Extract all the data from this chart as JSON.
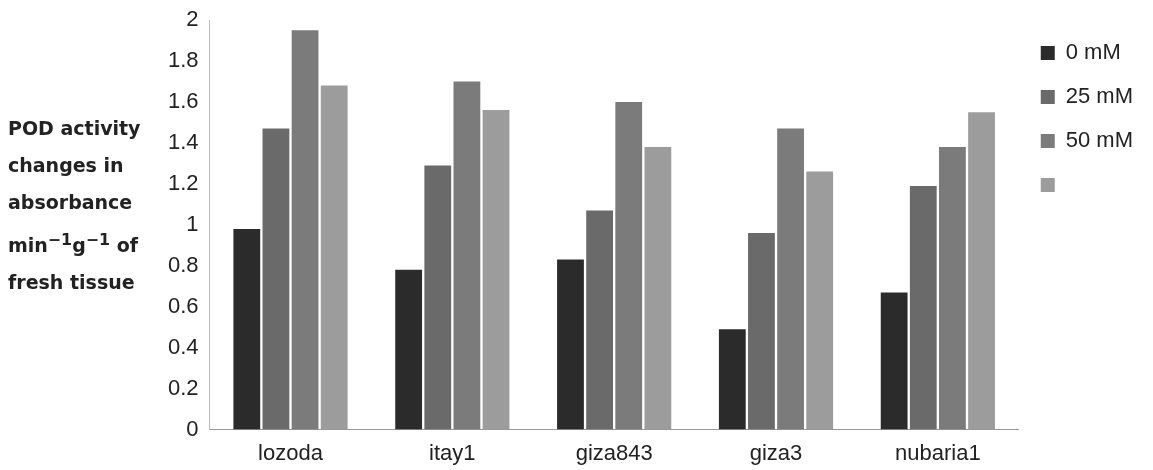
{
  "chart_data": {
    "type": "bar",
    "ylabel": "POD activity changes in absorbance min$^{−1}$g$^{−1}$ of fresh tissue",
    "categories": [
      "lozoda",
      "itay1",
      "giza843",
      "giza3",
      "nubaria1"
    ],
    "series": [
      {
        "name": "0 mM",
        "color": "#2b2b2b",
        "values": [
          0.98,
          0.78,
          0.83,
          0.49,
          0.67
        ]
      },
      {
        "name": "25 mM",
        "color": "#6a6a6a",
        "values": [
          1.47,
          1.29,
          1.07,
          0.96,
          1.19
        ]
      },
      {
        "name": "50 mM",
        "color": "#7b7b7b",
        "values": [
          1.95,
          1.7,
          1.6,
          1.47,
          1.38
        ]
      },
      {
        "color": "#9c9c9c",
        "values": [
          1.68,
          1.56,
          1.38,
          1.26,
          1.55
        ]
      }
    ],
    "ylim": [
      0,
      2
    ],
    "yticks": [
      0,
      0.2,
      0.4,
      0.6,
      0.8,
      1,
      1.2,
      1.4,
      1.6,
      1.8,
      2
    ],
    "grid": false,
    "legend": "top right"
  }
}
